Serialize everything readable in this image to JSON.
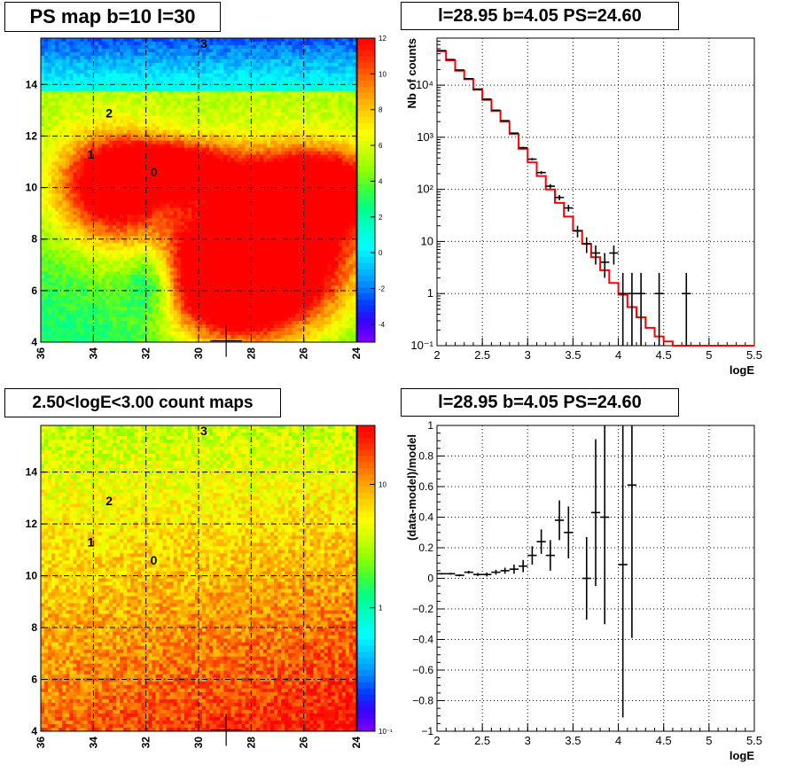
{
  "panels": {
    "ps_map": {
      "title": "PS map b=10 l=30",
      "x_ticks": [
        "36",
        "34",
        "32",
        "30",
        "28",
        "26",
        "24"
      ],
      "y_ticks": [
        "4",
        "6",
        "8",
        "10",
        "12",
        "14"
      ],
      "colorbar_ticks": [
        "12",
        "10",
        "8",
        "6",
        "4",
        "2",
        "0",
        "-2",
        "-4"
      ],
      "markers": [
        "0",
        "1",
        "2",
        "3"
      ],
      "crosshair_label": "+"
    },
    "count_map": {
      "title": "2.50<logE<3.00 count maps",
      "x_ticks": [
        "36",
        "34",
        "32",
        "30",
        "28",
        "26",
        "24"
      ],
      "y_ticks": [
        "4",
        "6",
        "8",
        "10",
        "12",
        "14"
      ],
      "colorbar_ticks": [
        "10",
        "1",
        "10⁻¹"
      ],
      "markers": [
        "0",
        "1",
        "2",
        "3"
      ]
    },
    "spectrum": {
      "title": "l=28.95 b=4.05 PS=24.60",
      "ylabel": "Nb of counts",
      "xlabel": "logE",
      "x_ticks": [
        "2",
        "2.5",
        "3",
        "3.5",
        "4",
        "4.5",
        "5",
        "5.5"
      ],
      "y_tick_labels": [
        "10⁻¹",
        "1",
        "10",
        "10²",
        "10³",
        "10⁴"
      ]
    },
    "residual": {
      "title": "l=28.95 b=4.05 PS=24.60",
      "ylabel": "(data-model)/model",
      "xlabel": "logE",
      "x_ticks": [
        "2",
        "2.5",
        "3",
        "3.5",
        "4",
        "4.5",
        "5",
        "5.5"
      ],
      "y_ticks": [
        "1",
        "0.8",
        "0.6",
        "0.4",
        "0.2",
        "0",
        "−0.2",
        "−0.4",
        "−0.6",
        "−0.8",
        "−1"
      ]
    }
  },
  "colors": {
    "model_line": "#ff0000",
    "data_points": "#000000",
    "grid": "#000000"
  },
  "chart_data": [
    {
      "type": "heatmap",
      "name": "ps_map",
      "title": "PS map b=10 l=30",
      "xlim": [
        36,
        24
      ],
      "ylim": [
        4,
        15.8
      ],
      "zlim": [
        -5,
        12
      ],
      "markers": [
        {
          "label": "0",
          "x": 31.7,
          "y": 10.6
        },
        {
          "label": "1",
          "x": 34.1,
          "y": 11.3
        },
        {
          "label": "2",
          "x": 33.4,
          "y": 12.9
        },
        {
          "label": "3",
          "x": 29.8,
          "y": 15.6
        }
      ],
      "crosshair": {
        "x": 28.95,
        "y": 4.05
      }
    },
    {
      "type": "heatmap",
      "name": "count_map",
      "title": "2.50<logE<3.00 count maps",
      "xlim": [
        36,
        24
      ],
      "ylim": [
        4,
        15.8
      ],
      "zscale": "log",
      "zlim": [
        0.1,
        30
      ],
      "markers": [
        {
          "label": "0",
          "x": 31.7,
          "y": 10.6
        },
        {
          "label": "1",
          "x": 34.1,
          "y": 11.3
        },
        {
          "label": "2",
          "x": 33.4,
          "y": 12.9
        },
        {
          "label": "3",
          "x": 29.8,
          "y": 15.6
        }
      ],
      "crosshair": {
        "x": 28.95,
        "y": 4.05
      }
    },
    {
      "type": "line",
      "name": "spectrum",
      "title": "l=28.95 b=4.05 PS=24.60",
      "xlabel": "logE",
      "ylabel": "Nb of counts",
      "xlim": [
        2,
        5.5
      ],
      "ylim": [
        0.1,
        80000
      ],
      "yscale": "log",
      "grid": true,
      "series": [
        {
          "kind": "step",
          "bin_edges": [
            2.0,
            2.1,
            2.2,
            2.3,
            2.4,
            2.5,
            2.6,
            2.7,
            2.8,
            2.9,
            3.0,
            3.1,
            3.2,
            3.3,
            3.4,
            3.5,
            3.6,
            3.7,
            3.8,
            3.9,
            4.0,
            4.1,
            4.2,
            4.3,
            4.4,
            4.5,
            4.6,
            4.7,
            4.8,
            4.9,
            5.0,
            5.1,
            5.2,
            5.3,
            5.4,
            5.5
          ],
          "values": [
            45000,
            30000,
            19000,
            13000,
            8200,
            5200,
            3200,
            2000,
            1150,
            600,
            330,
            180,
            100,
            55,
            30,
            16,
            9,
            5,
            2.8,
            1.6,
            0.95,
            0.55,
            0.35,
            0.22,
            0.15,
            0.12,
            0.1,
            0.1,
            0.1,
            0.1,
            0.1,
            0.1,
            0.1,
            0.1,
            0.1
          ]
        },
        {
          "kind": "errorbar",
          "x": [
            2.05,
            2.15,
            2.25,
            2.35,
            2.45,
            2.55,
            2.65,
            2.75,
            2.85,
            2.95,
            3.05,
            3.15,
            3.25,
            3.35,
            3.45,
            3.55,
            3.65,
            3.75,
            3.85,
            3.95,
            4.05,
            4.15,
            4.25,
            4.45,
            4.75
          ],
          "y": [
            46000,
            31000,
            19500,
            13300,
            8400,
            5400,
            3300,
            2080,
            1200,
            630,
            380,
            210,
            115,
            70,
            44,
            16,
            9,
            6,
            4,
            6,
            1,
            1,
            1,
            1,
            1
          ],
          "yerr_low": [
            215,
            176,
            140,
            115,
            92,
            73,
            57,
            46,
            35,
            25,
            19,
            14,
            11,
            8,
            6.5,
            4,
            3,
            2.4,
            2,
            2.4,
            0.9,
            0.9,
            0.9,
            0.9,
            0.9
          ],
          "yerr_high": [
            215,
            176,
            140,
            115,
            92,
            73,
            57,
            46,
            35,
            25,
            19,
            14,
            11,
            8,
            6.5,
            4,
            3,
            2.4,
            2,
            2.4,
            1.5,
            1.5,
            1.5,
            1.5,
            1.5
          ]
        }
      ]
    },
    {
      "type": "scatter",
      "name": "residual",
      "title": "l=28.95 b=4.05 PS=24.60",
      "xlabel": "logE",
      "ylabel": "(data-model)/model",
      "xlim": [
        2,
        5.5
      ],
      "ylim": [
        -1,
        1
      ],
      "grid": true,
      "series": [
        {
          "kind": "errorbar",
          "x": [
            2.05,
            2.15,
            2.25,
            2.35,
            2.45,
            2.55,
            2.65,
            2.75,
            2.85,
            2.95,
            3.05,
            3.15,
            3.25,
            3.35,
            3.45,
            3.65,
            3.75,
            3.85,
            4.05,
            4.15
          ],
          "y": [
            0.03,
            0.03,
            0.02,
            0.04,
            0.025,
            0.025,
            0.04,
            0.05,
            0.06,
            0.08,
            0.15,
            0.24,
            0.15,
            0.38,
            0.3,
            0.0,
            0.43,
            0.4,
            0.09,
            0.61
          ],
          "yerr": [
            0.005,
            0.006,
            0.007,
            0.009,
            0.01,
            0.013,
            0.016,
            0.02,
            0.03,
            0.04,
            0.06,
            0.08,
            0.1,
            0.13,
            0.17,
            0.27,
            0.48,
            0.7,
            1.0,
            1.0
          ]
        }
      ]
    }
  ]
}
